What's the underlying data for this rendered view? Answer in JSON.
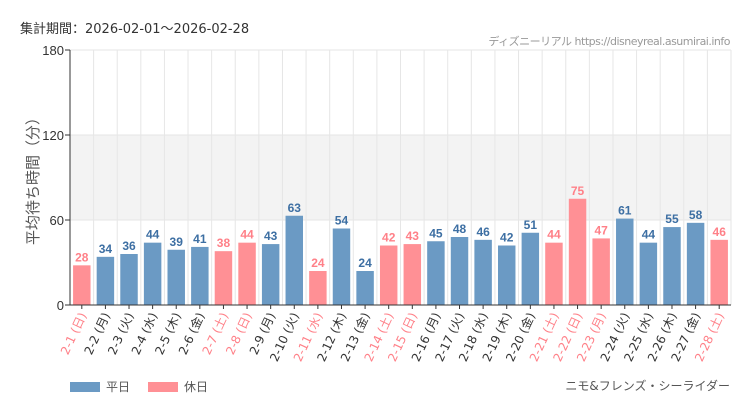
{
  "header": {
    "period": "集計期間：2026-02-01～2026-02-28",
    "credit": "ディズニーリアル https://disneyreal.asumirai.info"
  },
  "footer": {
    "attraction": "ニモ&フレンズ・シーライダー"
  },
  "colors": {
    "weekday": "#6b9ac4",
    "holiday": "#ff9095",
    "holiday_text": "#ff8088",
    "weekday_text": "#3d6fa3",
    "band": "#f3f3f3"
  },
  "chart_data": {
    "type": "bar",
    "ylabel": "平均待ち時間（分）",
    "ylim": [
      0,
      180
    ],
    "yticks": [
      0,
      60,
      120,
      180
    ],
    "grid": true,
    "legend_position": "bottom-left",
    "legend": [
      {
        "name": "平日",
        "key": "weekday"
      },
      {
        "name": "休日",
        "key": "holiday"
      }
    ],
    "categories": [
      "2-1 (日)",
      "2-2 (月)",
      "2-3 (火)",
      "2-4 (水)",
      "2-5 (木)",
      "2-6 (金)",
      "2-7 (土)",
      "2-8 (日)",
      "2-9 (月)",
      "2-10 (火)",
      "2-11 (水)",
      "2-12 (木)",
      "2-13 (金)",
      "2-14 (土)",
      "2-15 (日)",
      "2-16 (月)",
      "2-17 (火)",
      "2-18 (水)",
      "2-19 (木)",
      "2-20 (金)",
      "2-21 (土)",
      "2-22 (日)",
      "2-23 (月)",
      "2-24 (火)",
      "2-25 (水)",
      "2-26 (木)",
      "2-27 (金)",
      "2-28 (土)"
    ],
    "values": [
      28,
      34,
      36,
      44,
      39,
      41,
      38,
      44,
      43,
      63,
      24,
      54,
      24,
      42,
      43,
      45,
      48,
      46,
      42,
      51,
      44,
      75,
      47,
      61,
      44,
      55,
      58,
      46
    ],
    "holiday": [
      true,
      false,
      false,
      false,
      false,
      false,
      true,
      true,
      false,
      false,
      true,
      false,
      false,
      true,
      true,
      false,
      false,
      false,
      false,
      false,
      true,
      true,
      true,
      false,
      false,
      false,
      false,
      true
    ]
  }
}
